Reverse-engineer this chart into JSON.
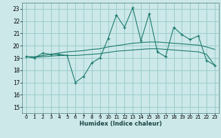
{
  "xlabel": "Humidex (Indice chaleur)",
  "ylabel": "",
  "background_color": "#cce8e8",
  "grid_color": "#99cccc",
  "line_color": "#1a7a6e",
  "xlim": [
    -0.5,
    23.5
  ],
  "ylim": [
    14.5,
    23.5
  ],
  "yticks": [
    15,
    16,
    17,
    18,
    19,
    20,
    21,
    22,
    23
  ],
  "xticks": [
    0,
    1,
    2,
    3,
    4,
    5,
    6,
    7,
    8,
    9,
    10,
    11,
    12,
    13,
    14,
    15,
    16,
    17,
    18,
    19,
    20,
    21,
    22,
    23
  ],
  "series1_y": [
    19.1,
    19.0,
    19.4,
    19.3,
    19.3,
    19.2,
    17.0,
    17.5,
    18.6,
    19.0,
    20.6,
    22.5,
    21.5,
    23.1,
    20.4,
    22.6,
    19.5,
    19.1,
    21.5,
    20.9,
    20.5,
    20.8,
    18.8,
    18.4
  ],
  "series2_y": [
    19.1,
    19.1,
    19.2,
    19.3,
    19.4,
    19.5,
    19.55,
    19.6,
    19.7,
    19.75,
    19.9,
    20.0,
    20.1,
    20.2,
    20.25,
    20.3,
    20.3,
    20.25,
    20.2,
    20.15,
    20.1,
    20.05,
    19.9,
    19.7
  ],
  "series3_y": [
    19.1,
    19.05,
    19.1,
    19.15,
    19.2,
    19.2,
    19.2,
    19.25,
    19.3,
    19.35,
    19.45,
    19.55,
    19.6,
    19.65,
    19.7,
    19.75,
    19.75,
    19.7,
    19.65,
    19.6,
    19.55,
    19.5,
    19.3,
    18.4
  ]
}
